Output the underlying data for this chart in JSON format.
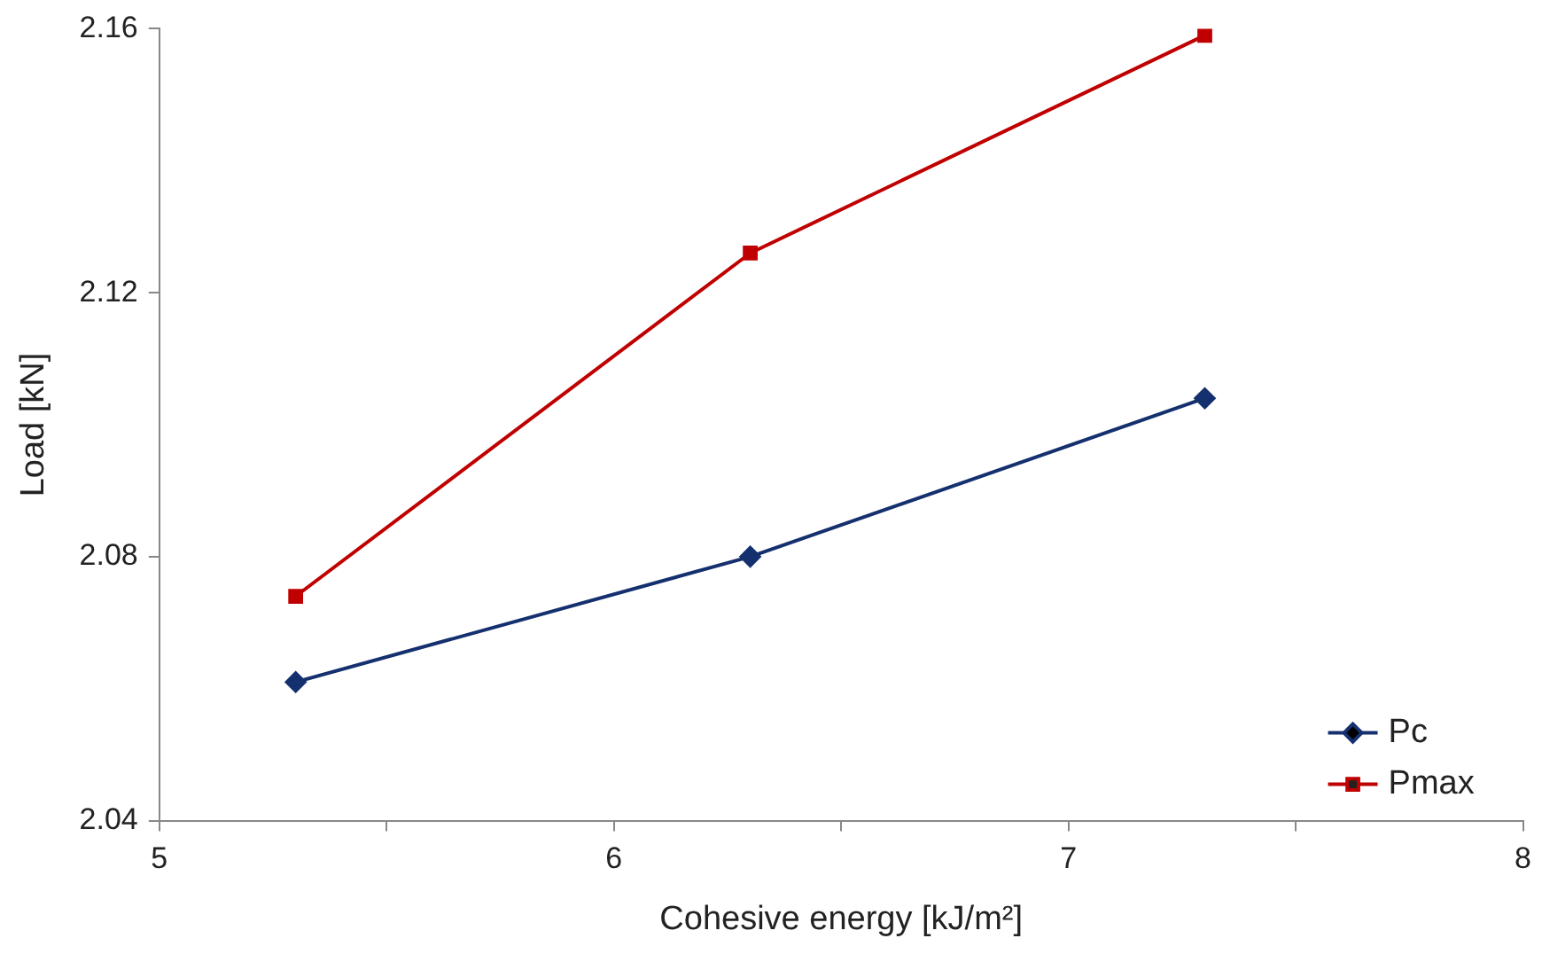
{
  "chart_data": {
    "type": "line",
    "xlabel": "Cohesive energy [kJ/m²]",
    "ylabel": "Load [kN]",
    "x": [
      5.3,
      6.3,
      7.3
    ],
    "series": [
      {
        "name": "Pc",
        "color": "#14306e",
        "marker": "diamond",
        "values": [
          2.061,
          2.08,
          2.104
        ]
      },
      {
        "name": "Pmax",
        "color": "#c00000",
        "marker": "square",
        "values": [
          2.074,
          2.126,
          2.159
        ]
      }
    ],
    "xlim": [
      5,
      8
    ],
    "xticks": [
      5,
      {
        "value": 5.5,
        "label": null
      },
      6,
      {
        "value": 6.5,
        "label": null
      },
      7,
      {
        "value": 7.5,
        "label": null
      },
      8
    ],
    "ylim": [
      2.04,
      2.16
    ],
    "yticks": [
      {
        "value": 2.04,
        "label": "2.04"
      },
      {
        "value": 2.08,
        "label": "2.08"
      },
      2.12,
      2.16
    ],
    "grid": false,
    "legend": "bottom right",
    "line_style": "solid"
  }
}
